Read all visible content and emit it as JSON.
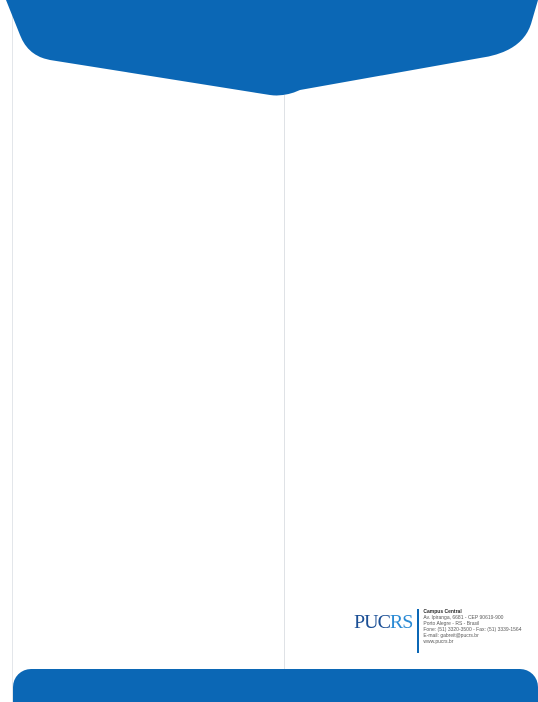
{
  "brand": {
    "logo_part_a": "PUC",
    "logo_part_b": "RS",
    "primary_color": "#0b67b5"
  },
  "footer": {
    "campus": "Campus Central",
    "lines": [
      "Av. Ipiranga, 6681 - CEP 90619-900",
      "Porto Alegre - RS - Brasil",
      "Fone: (51) 3320-3500 - Fax: (51) 3339-1564",
      "E-mail: gabreit@pucrs.br",
      "www.pucrs.br"
    ]
  }
}
